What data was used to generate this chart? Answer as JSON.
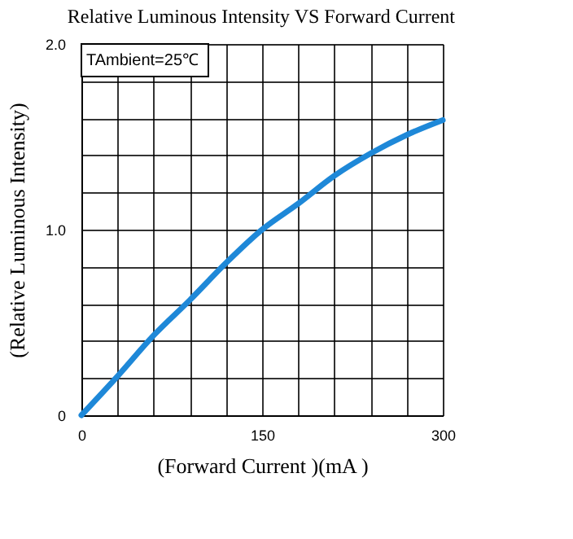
{
  "chart_data": {
    "type": "line",
    "title": "Relative Luminous Intensity VS Forward Current",
    "xlabel": "(Forward Current )(mA )",
    "ylabel": "(Relative Luminous Intensity)",
    "annotations": [
      "TAmbient=25℃"
    ],
    "x": [
      0,
      30,
      60,
      90,
      120,
      150,
      180,
      210,
      240,
      270,
      300
    ],
    "series": [
      {
        "color": "#1e88d8",
        "values": [
          0,
          0.21,
          0.43,
          0.62,
          0.82,
          1.0,
          1.14,
          1.29,
          1.41,
          1.51,
          1.59
        ]
      }
    ],
    "xlim": [
      0,
      300
    ],
    "ylim": [
      0,
      2.0
    ],
    "xticks": [
      0,
      {
        "value": 30,
        "label": null
      },
      {
        "value": 60,
        "label": null
      },
      {
        "value": 90,
        "label": null
      },
      {
        "value": 120,
        "label": null
      },
      150,
      {
        "value": 180,
        "label": null
      },
      {
        "value": 210,
        "label": null
      },
      {
        "value": 240,
        "label": null
      },
      {
        "value": 270,
        "label": null
      },
      300
    ],
    "yticks": [
      0,
      {
        "value": 0.2,
        "label": null
      },
      {
        "value": 0.4,
        "label": null
      },
      {
        "value": 0.6,
        "label": null
      },
      {
        "value": 0.8,
        "label": null
      },
      {
        "value": 1.0,
        "label": "1.0"
      },
      {
        "value": 1.2,
        "label": null
      },
      {
        "value": 1.4,
        "label": null
      },
      {
        "value": 1.6,
        "label": null
      },
      {
        "value": 1.8,
        "label": null
      },
      {
        "value": 2.0,
        "label": "2.0"
      }
    ],
    "grid": true,
    "marker": "none",
    "line_style": "solid"
  }
}
